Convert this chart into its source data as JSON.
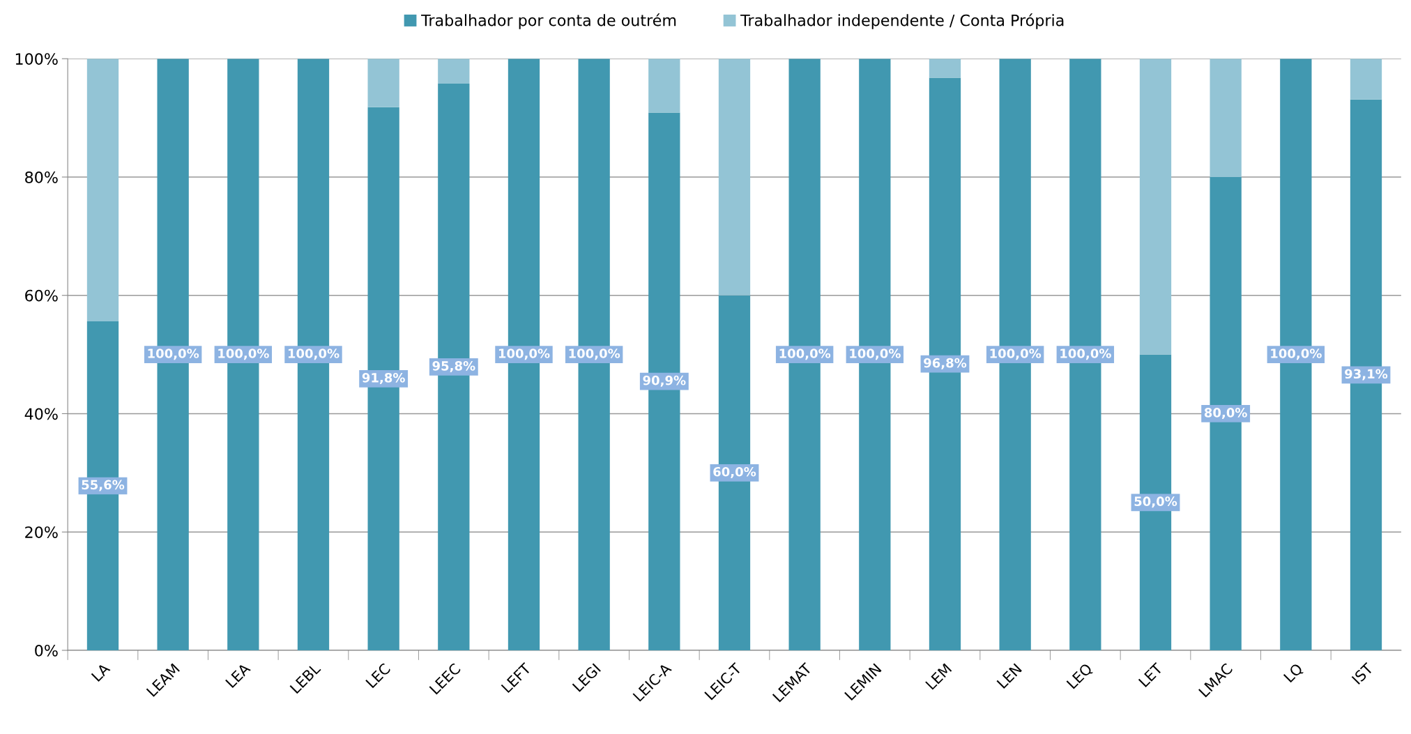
{
  "chart_data": {
    "type": "bar",
    "stacked": true,
    "categories": [
      "LA",
      "LEAM",
      "LEA",
      "LEBL",
      "LEC",
      "LEEC",
      "LEFT",
      "LEGI",
      "LEIC-A",
      "LEIC-T",
      "LEMAT",
      "LEMIN",
      "LEM",
      "LEN",
      "LEQ",
      "LET",
      "LMAC",
      "LQ",
      "IST"
    ],
    "series": [
      {
        "name": "Trabalhador por conta de outrém",
        "color": "#4198b0",
        "values": [
          55.6,
          100.0,
          100.0,
          100.0,
          91.8,
          95.8,
          100.0,
          100.0,
          90.9,
          60.0,
          100.0,
          100.0,
          96.8,
          100.0,
          100.0,
          50.0,
          80.0,
          100.0,
          93.1
        ],
        "value_labels": [
          "55,6%",
          "100,0%",
          "100,0%",
          "100,0%",
          "91,8%",
          "95,8%",
          "100,0%",
          "100,0%",
          "90,9%",
          "60,0%",
          "100,0%",
          "100,0%",
          "96,8%",
          "100,0%",
          "100,0%",
          "50,0%",
          "80,0%",
          "100,0%",
          "93,1%"
        ]
      },
      {
        "name": "Trabalhador independente / Conta Própria",
        "color": "#93c4d5",
        "values": [
          44.4,
          null,
          null,
          null,
          8.2,
          4.2,
          null,
          null,
          9.1,
          40.0,
          null,
          null,
          3.2,
          null,
          null,
          50.0,
          20.0,
          null,
          6.9
        ]
      }
    ],
    "ylim": [
      0,
      100
    ],
    "yticks": [
      {
        "value": 0,
        "label": "0%"
      },
      {
        "value": 20,
        "label": "20%"
      },
      {
        "value": 40,
        "label": "40%"
      },
      {
        "value": 60,
        "label": "60%"
      },
      {
        "value": 80,
        "label": "80%"
      },
      {
        "value": 100,
        "label": "100%"
      }
    ],
    "grid": "y",
    "legend": "top"
  }
}
